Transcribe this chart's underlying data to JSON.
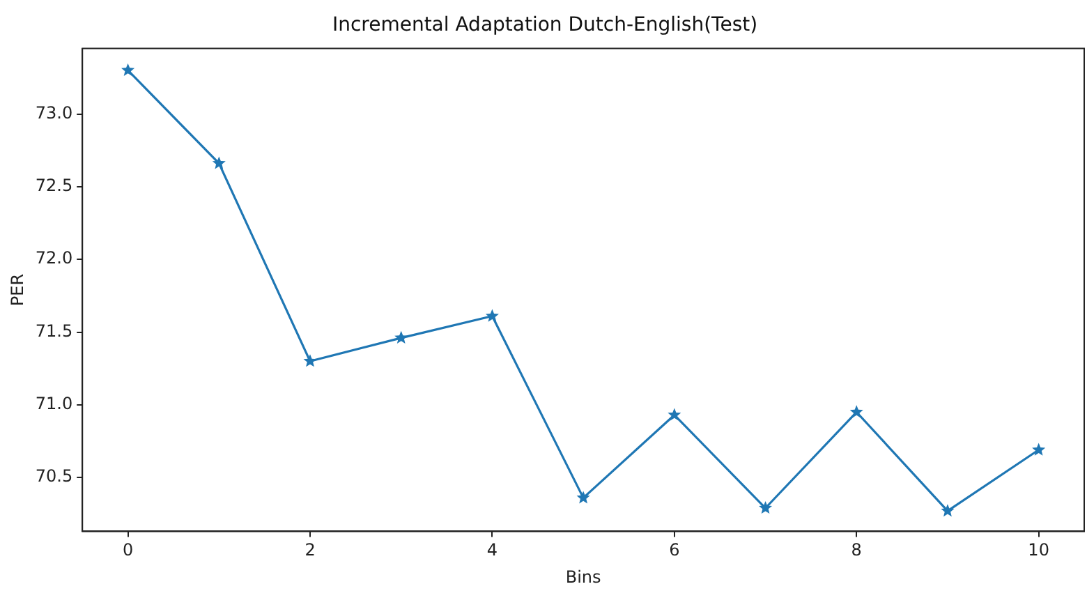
{
  "chart_data": {
    "type": "line",
    "title": "Incremental Adaptation Dutch-English(Test)",
    "xlabel": "Bins",
    "ylabel": "PER",
    "x": [
      0,
      1,
      2,
      3,
      4,
      5,
      6,
      7,
      8,
      9,
      10
    ],
    "series": [
      {
        "color": "#1f77b4",
        "values": [
          73.3,
          72.66,
          71.3,
          71.46,
          71.61,
          70.36,
          70.93,
          70.29,
          70.95,
          70.27,
          70.69
        ]
      }
    ],
    "xlim": [
      -0.5,
      10.5
    ],
    "xticks": [
      0,
      2,
      4,
      6,
      8,
      10
    ],
    "ylim": [
      70.13,
      73.45
    ],
    "yticks": [
      {
        "value": 70.5,
        "label": "70.5"
      },
      {
        "value": 71,
        "label": "71.0"
      },
      {
        "value": 71.5,
        "label": "71.5"
      },
      {
        "value": 72,
        "label": "72.0"
      },
      {
        "value": 72.5,
        "label": "72.5"
      },
      {
        "value": 73,
        "label": "73.0"
      }
    ],
    "grid": false,
    "legend": false,
    "marker": "star",
    "line_style": "solid"
  }
}
